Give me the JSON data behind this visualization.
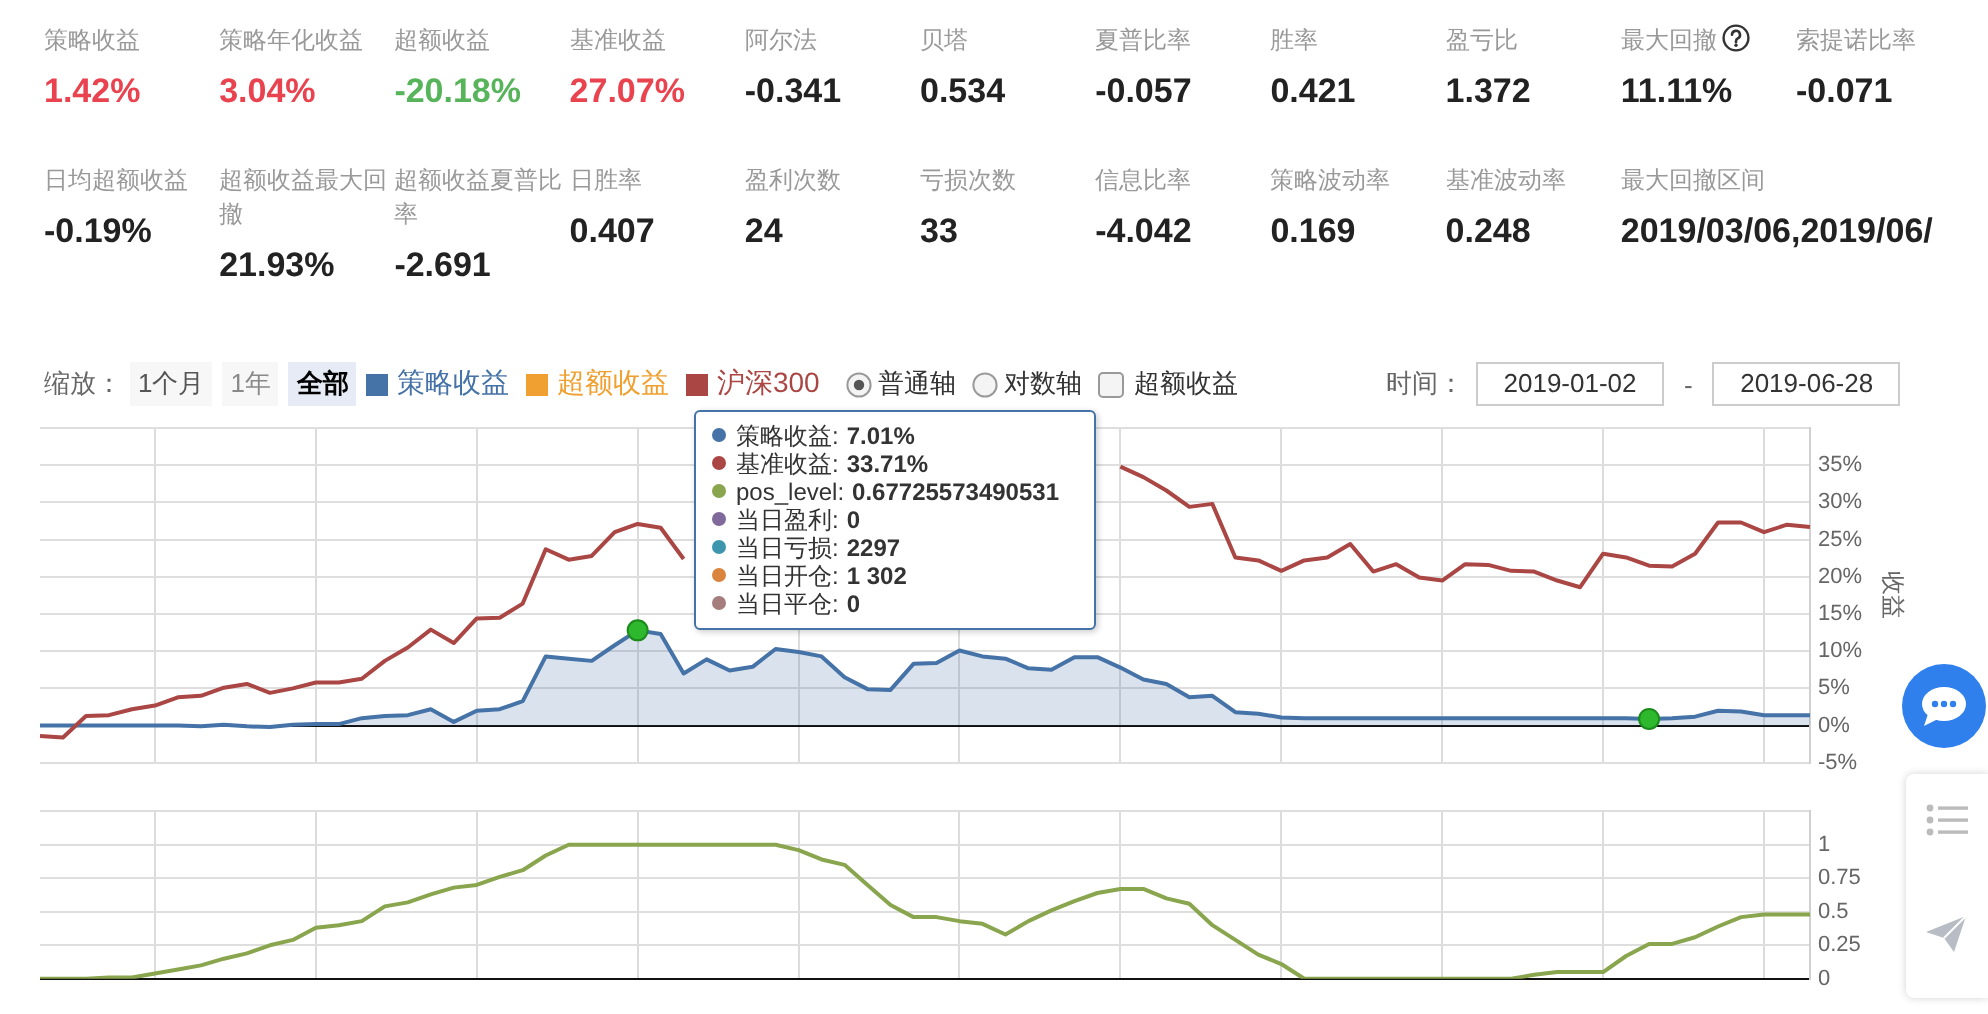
{
  "chart_data": [
    {
      "type": "other",
      "categories": [
        "策略收益",
        "策略年化收益",
        "超额收益",
        "基准收益",
        "阿尔法",
        "贝塔",
        "夏普比率",
        "胜率",
        "盈亏比",
        "最大回撤",
        "索提诺比率",
        "日均超额收益",
        "超额收益最大回撤",
        "超额收益夏普比率",
        "日胜率",
        "盈利次数",
        "亏损次数",
        "信息比率",
        "策略波动率",
        "基准波动率",
        "最大回撤区间"
      ],
      "value_labels": [
        "1.42%",
        "3.04%",
        "-20.18%",
        "27.07%",
        "-0.341",
        "0.534",
        "-0.057",
        "0.421",
        "1.372",
        "11.11%",
        "-0.071",
        "-0.19%",
        "21.93%",
        "-2.691",
        "0.407",
        "24",
        "33",
        "-4.042",
        "0.169",
        "0.248",
        "2019/03/06,2019/06/"
      ],
      "colors": [
        "#e8434f",
        "#e8434f",
        "#58b45a",
        "#e8434f",
        "#222222",
        "#222222",
        "#222222",
        "#222222",
        "#222222",
        "#222222",
        "#222222",
        "#222222",
        "#222222",
        "#222222",
        "#222222",
        "#222222",
        "#222222",
        "#222222",
        "#222222",
        "#222222",
        "#222222"
      ]
    },
    {
      "type": "line",
      "ylabel": "收益",
      "legend": "top left",
      "grid": true,
      "categories": [
        null,
        null,
        null,
        null,
        null,
        null,
        null,
        null,
        null,
        null,
        null,
        null,
        null,
        null,
        null,
        null,
        null,
        null,
        null,
        null,
        null,
        null,
        null,
        null,
        null,
        null,
        null,
        null,
        null,
        null,
        null,
        null,
        null,
        null,
        null,
        null,
        null,
        null,
        null,
        null,
        null,
        null,
        null,
        null,
        null,
        null,
        null,
        null,
        null,
        null,
        null,
        null,
        null,
        null,
        null,
        null,
        null,
        null,
        null,
        null,
        null,
        null,
        null,
        null,
        null,
        null,
        null,
        null,
        null,
        null,
        null,
        null,
        null,
        null,
        null,
        null,
        null,
        null
      ],
      "series": [
        {
          "name": "策略收益",
          "type": "area",
          "color": "#4572a7",
          "values": [
            0,
            0,
            0,
            0,
            0,
            0,
            0,
            -0.1,
            0.1,
            -0.1,
            -0.2,
            0.1,
            0.2,
            0.2,
            1.0,
            1.3,
            1.4,
            2.2,
            0.5,
            2.0,
            2.2,
            3.3,
            9.3,
            9.0,
            8.7,
            10.8,
            12.8,
            12.3,
            7.0,
            8.9,
            7.4,
            7.9,
            10.3,
            9.9,
            9.3,
            6.5,
            4.9,
            4.8,
            8.3,
            8.4,
            10.1,
            9.3,
            9.0,
            7.7,
            7.5,
            9.2,
            9.2,
            7.8,
            6.2,
            5.6,
            3.8,
            4.0,
            1.8,
            1.6,
            1.1,
            1.0,
            1.0,
            1.0,
            1.0,
            1.0,
            1.0,
            1.0,
            1.0,
            1.0,
            1.0,
            1.0,
            1.0,
            1.0,
            1.0,
            1.0,
            0.9,
            1.0,
            1.2,
            2.0,
            1.9,
            1.4,
            1.4,
            1.4
          ]
        },
        {
          "name": "超额收益",
          "color": "#f0a030",
          "values": [
            null,
            null,
            null,
            null,
            null,
            null,
            null,
            null,
            null,
            null,
            null,
            null,
            null,
            null,
            null,
            null,
            null,
            null,
            null,
            null,
            null,
            null,
            null,
            null,
            null,
            null,
            null,
            null,
            null,
            null,
            null,
            null,
            null,
            null,
            null,
            null,
            null,
            null,
            null,
            null,
            null,
            null,
            null,
            null,
            null,
            null,
            null,
            null,
            null,
            null,
            null,
            null,
            null,
            null,
            null,
            null,
            null,
            null,
            null,
            null,
            null,
            null,
            null,
            null,
            null,
            null,
            null,
            null,
            null,
            null,
            null,
            null,
            null,
            null,
            null,
            null,
            null,
            null
          ]
        },
        {
          "name": "沪深300",
          "color": "#aa4643",
          "values": [
            -1.4,
            -1.6,
            1.3,
            1.4,
            2.2,
            2.7,
            3.8,
            4.0,
            5.1,
            5.6,
            4.4,
            5.0,
            5.8,
            5.8,
            6.3,
            8.7,
            10.5,
            12.9,
            11.1,
            14.4,
            14.5,
            16.4,
            23.7,
            22.3,
            22.8,
            26.0,
            27.1,
            26.6,
            22.4,
            null,
            null,
            null,
            null,
            null,
            null,
            null,
            null,
            null,
            null,
            null,
            null,
            null,
            null,
            null,
            null,
            null,
            null,
            34.8,
            33.4,
            31.6,
            29.4,
            29.8,
            22.6,
            22.2,
            20.8,
            22.2,
            22.6,
            24.4,
            20.7,
            21.7,
            19.9,
            19.5,
            21.7,
            21.6,
            20.8,
            20.7,
            19.5,
            18.6,
            23.1,
            22.6,
            21.5,
            21.4,
            23.1,
            27.3,
            27.3,
            26.0,
            27.0,
            26.7
          ]
        },
        {
          "type": "scatter",
          "color": "#2db82d",
          "values": [
            null,
            null,
            null,
            null,
            null,
            null,
            null,
            null,
            null,
            null,
            null,
            null,
            null,
            null,
            null,
            null,
            null,
            null,
            null,
            null,
            null,
            null,
            null,
            null,
            null,
            null,
            12.8,
            null,
            null,
            null,
            null,
            null,
            null,
            null,
            null,
            null,
            null,
            null,
            null,
            null,
            null,
            null,
            null,
            null,
            null,
            null,
            null,
            null,
            null,
            null,
            null,
            null,
            null,
            null,
            null,
            null,
            null,
            null,
            null,
            null,
            null,
            null,
            null,
            null,
            null,
            null,
            null,
            null,
            null,
            null,
            0.9,
            null,
            null,
            null,
            null,
            null,
            null,
            null
          ]
        }
      ],
      "ylim": [
        -5,
        40
      ],
      "yticks": [
        {
          "value": -5,
          "label": "-5%"
        },
        {
          "value": 0,
          "label": "0%"
        },
        {
          "value": 5,
          "label": "5%"
        },
        {
          "value": 10,
          "label": "10%"
        },
        {
          "value": 15,
          "label": "15%"
        },
        {
          "value": 20,
          "label": "20%"
        },
        {
          "value": 25,
          "label": "25%"
        },
        {
          "value": 30,
          "label": "30%"
        },
        {
          "value": 35,
          "label": "35%"
        },
        {
          "value": 40,
          "label": null
        }
      ],
      "annotations": [
        "缩放：",
        "1个月",
        "1年",
        "全部",
        "普通轴",
        "对数轴",
        "超额收益",
        "时间：",
        "2019-01-02",
        "-",
        "2019-06-28",
        "策略收益: 7.01%",
        "基准收益: 33.71%",
        "pos_level: 0.67725573490531",
        "当日盈利: 0",
        "当日亏损: 2297",
        "当日开仓: 1 302",
        "当日平仓: 0"
      ]
    },
    {
      "type": "line",
      "grid": true,
      "categories": [
        null,
        null,
        null,
        null,
        null,
        null,
        null,
        null,
        null,
        null,
        null,
        null,
        null,
        null,
        null,
        null,
        null,
        null,
        null,
        null,
        null,
        null,
        null,
        null,
        null,
        null,
        null,
        null,
        null,
        null,
        null,
        null,
        null,
        null,
        null,
        null,
        null,
        null,
        null,
        null,
        null,
        null,
        null,
        null,
        null,
        null,
        null,
        null,
        null,
        null,
        null,
        null,
        null,
        null,
        null,
        null,
        null,
        null,
        null,
        null,
        null,
        null,
        null,
        null,
        null,
        null,
        null,
        null,
        null,
        null,
        null,
        null,
        null,
        null,
        null,
        null,
        null,
        null
      ],
      "series": [
        {
          "color": "#89a54e",
          "values": [
            0,
            0,
            0,
            0.01,
            0.01,
            0.04,
            0.07,
            0.1,
            0.15,
            0.19,
            0.25,
            0.29,
            0.38,
            0.4,
            0.43,
            0.54,
            0.57,
            0.63,
            0.68,
            0.7,
            0.76,
            0.81,
            0.92,
            1,
            1,
            1,
            1,
            1,
            1,
            1,
            1,
            1,
            1,
            0.96,
            0.89,
            0.85,
            0.7,
            0.55,
            0.46,
            0.46,
            0.43,
            0.41,
            0.33,
            0.43,
            0.51,
            0.58,
            0.64,
            0.67,
            0.67,
            0.6,
            0.56,
            0.4,
            0.29,
            0.18,
            0.11,
            0,
            0,
            0,
            0,
            0,
            0,
            0,
            0,
            0,
            0,
            0.03,
            0.05,
            0.05,
            0.05,
            0.17,
            0.26,
            0.26,
            0.31,
            0.39,
            0.46,
            0.48,
            0.48,
            0.48
          ]
        }
      ],
      "ylim": [
        0,
        1.25
      ],
      "yticks": [
        0,
        0.25,
        0.5,
        0.75,
        1,
        {
          "value": 1.25,
          "label": null
        }
      ]
    }
  ]
}
